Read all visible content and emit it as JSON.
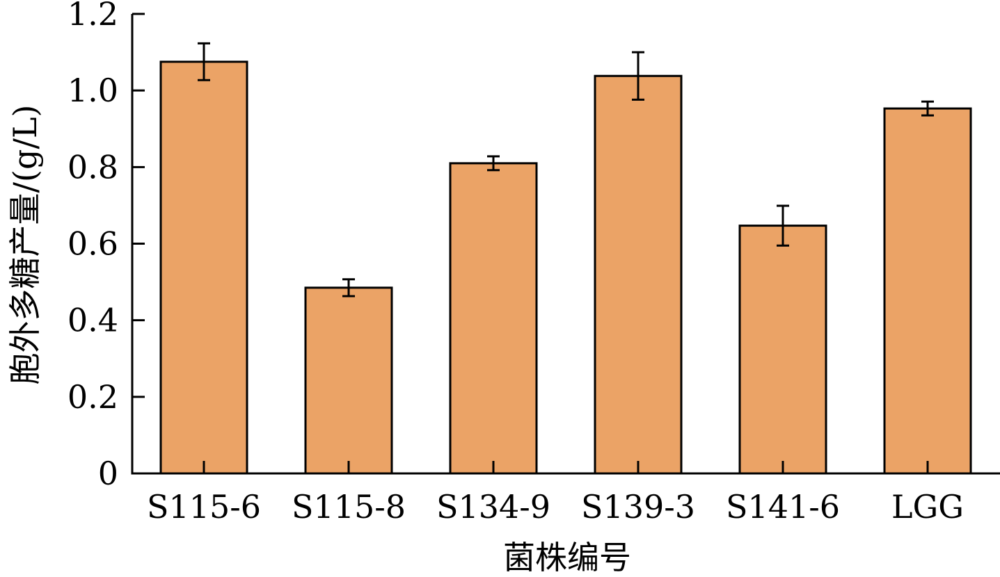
{
  "chart_data": {
    "type": "bar",
    "title": "",
    "xlabel": "菌株编号",
    "ylabel": "胞外多糖产量/(g/L)",
    "categories": [
      "S115-6",
      "S115-8",
      "S134-9",
      "S139-3",
      "S141-6",
      "LGG"
    ],
    "series": [
      {
        "values": [
          1.075,
          0.485,
          0.81,
          1.038,
          0.647,
          0.953
        ],
        "errors": [
          0.048,
          0.022,
          0.018,
          0.062,
          0.052,
          0.018
        ]
      }
    ],
    "yticks": [
      "0",
      "0.2",
      "0.4",
      "0.6",
      "0.8",
      "1.0",
      "1.2"
    ],
    "ylim": [
      0,
      1.2
    ],
    "grid": false,
    "bar_color": "#EBA366"
  }
}
